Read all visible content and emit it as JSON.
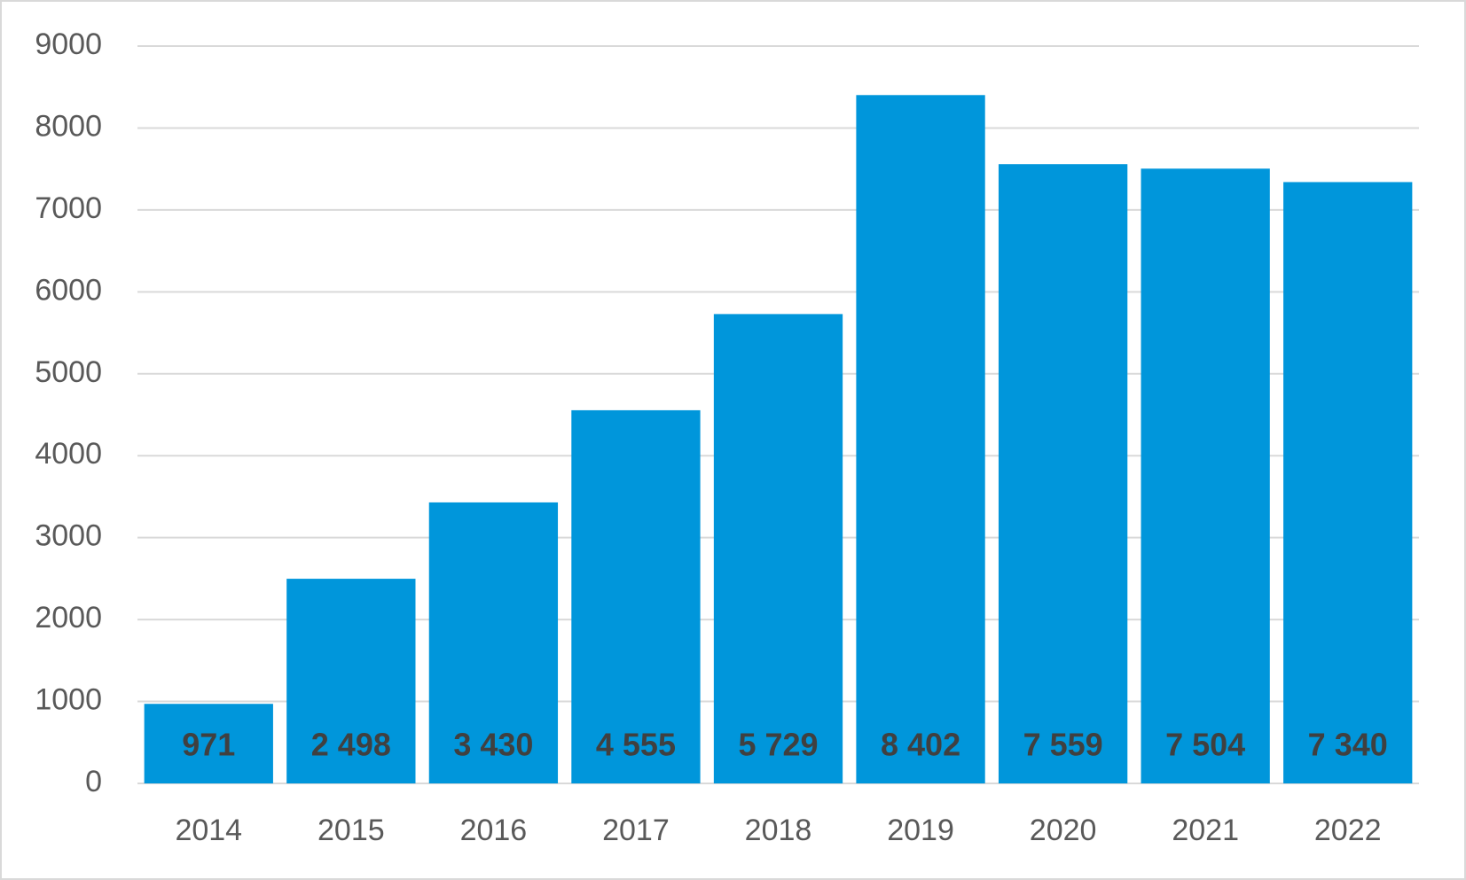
{
  "chart_data": {
    "type": "bar",
    "title": "",
    "xlabel": "",
    "ylabel": "",
    "categories": [
      "2014",
      "2015",
      "2016",
      "2017",
      "2018",
      "2019",
      "2020",
      "2021",
      "2022"
    ],
    "values": [
      971,
      2498,
      3430,
      4555,
      5729,
      8402,
      7559,
      7504,
      7340
    ],
    "value_labels": [
      "971",
      "2 498",
      "3 430",
      "4 555",
      "5 729",
      "8 402",
      "7 559",
      "7 504",
      "7 340"
    ],
    "ylim": [
      0,
      9000
    ],
    "yticks": [
      "0",
      "1000",
      "2000",
      "3000",
      "4000",
      "5000",
      "6000",
      "7000",
      "8000",
      "9000"
    ],
    "grid": true,
    "legend": "none",
    "bar_color": "#0096db",
    "gridline_color": "#d9d9d9",
    "tick_label_color": "#595959",
    "data_label_color": "#404040"
  }
}
